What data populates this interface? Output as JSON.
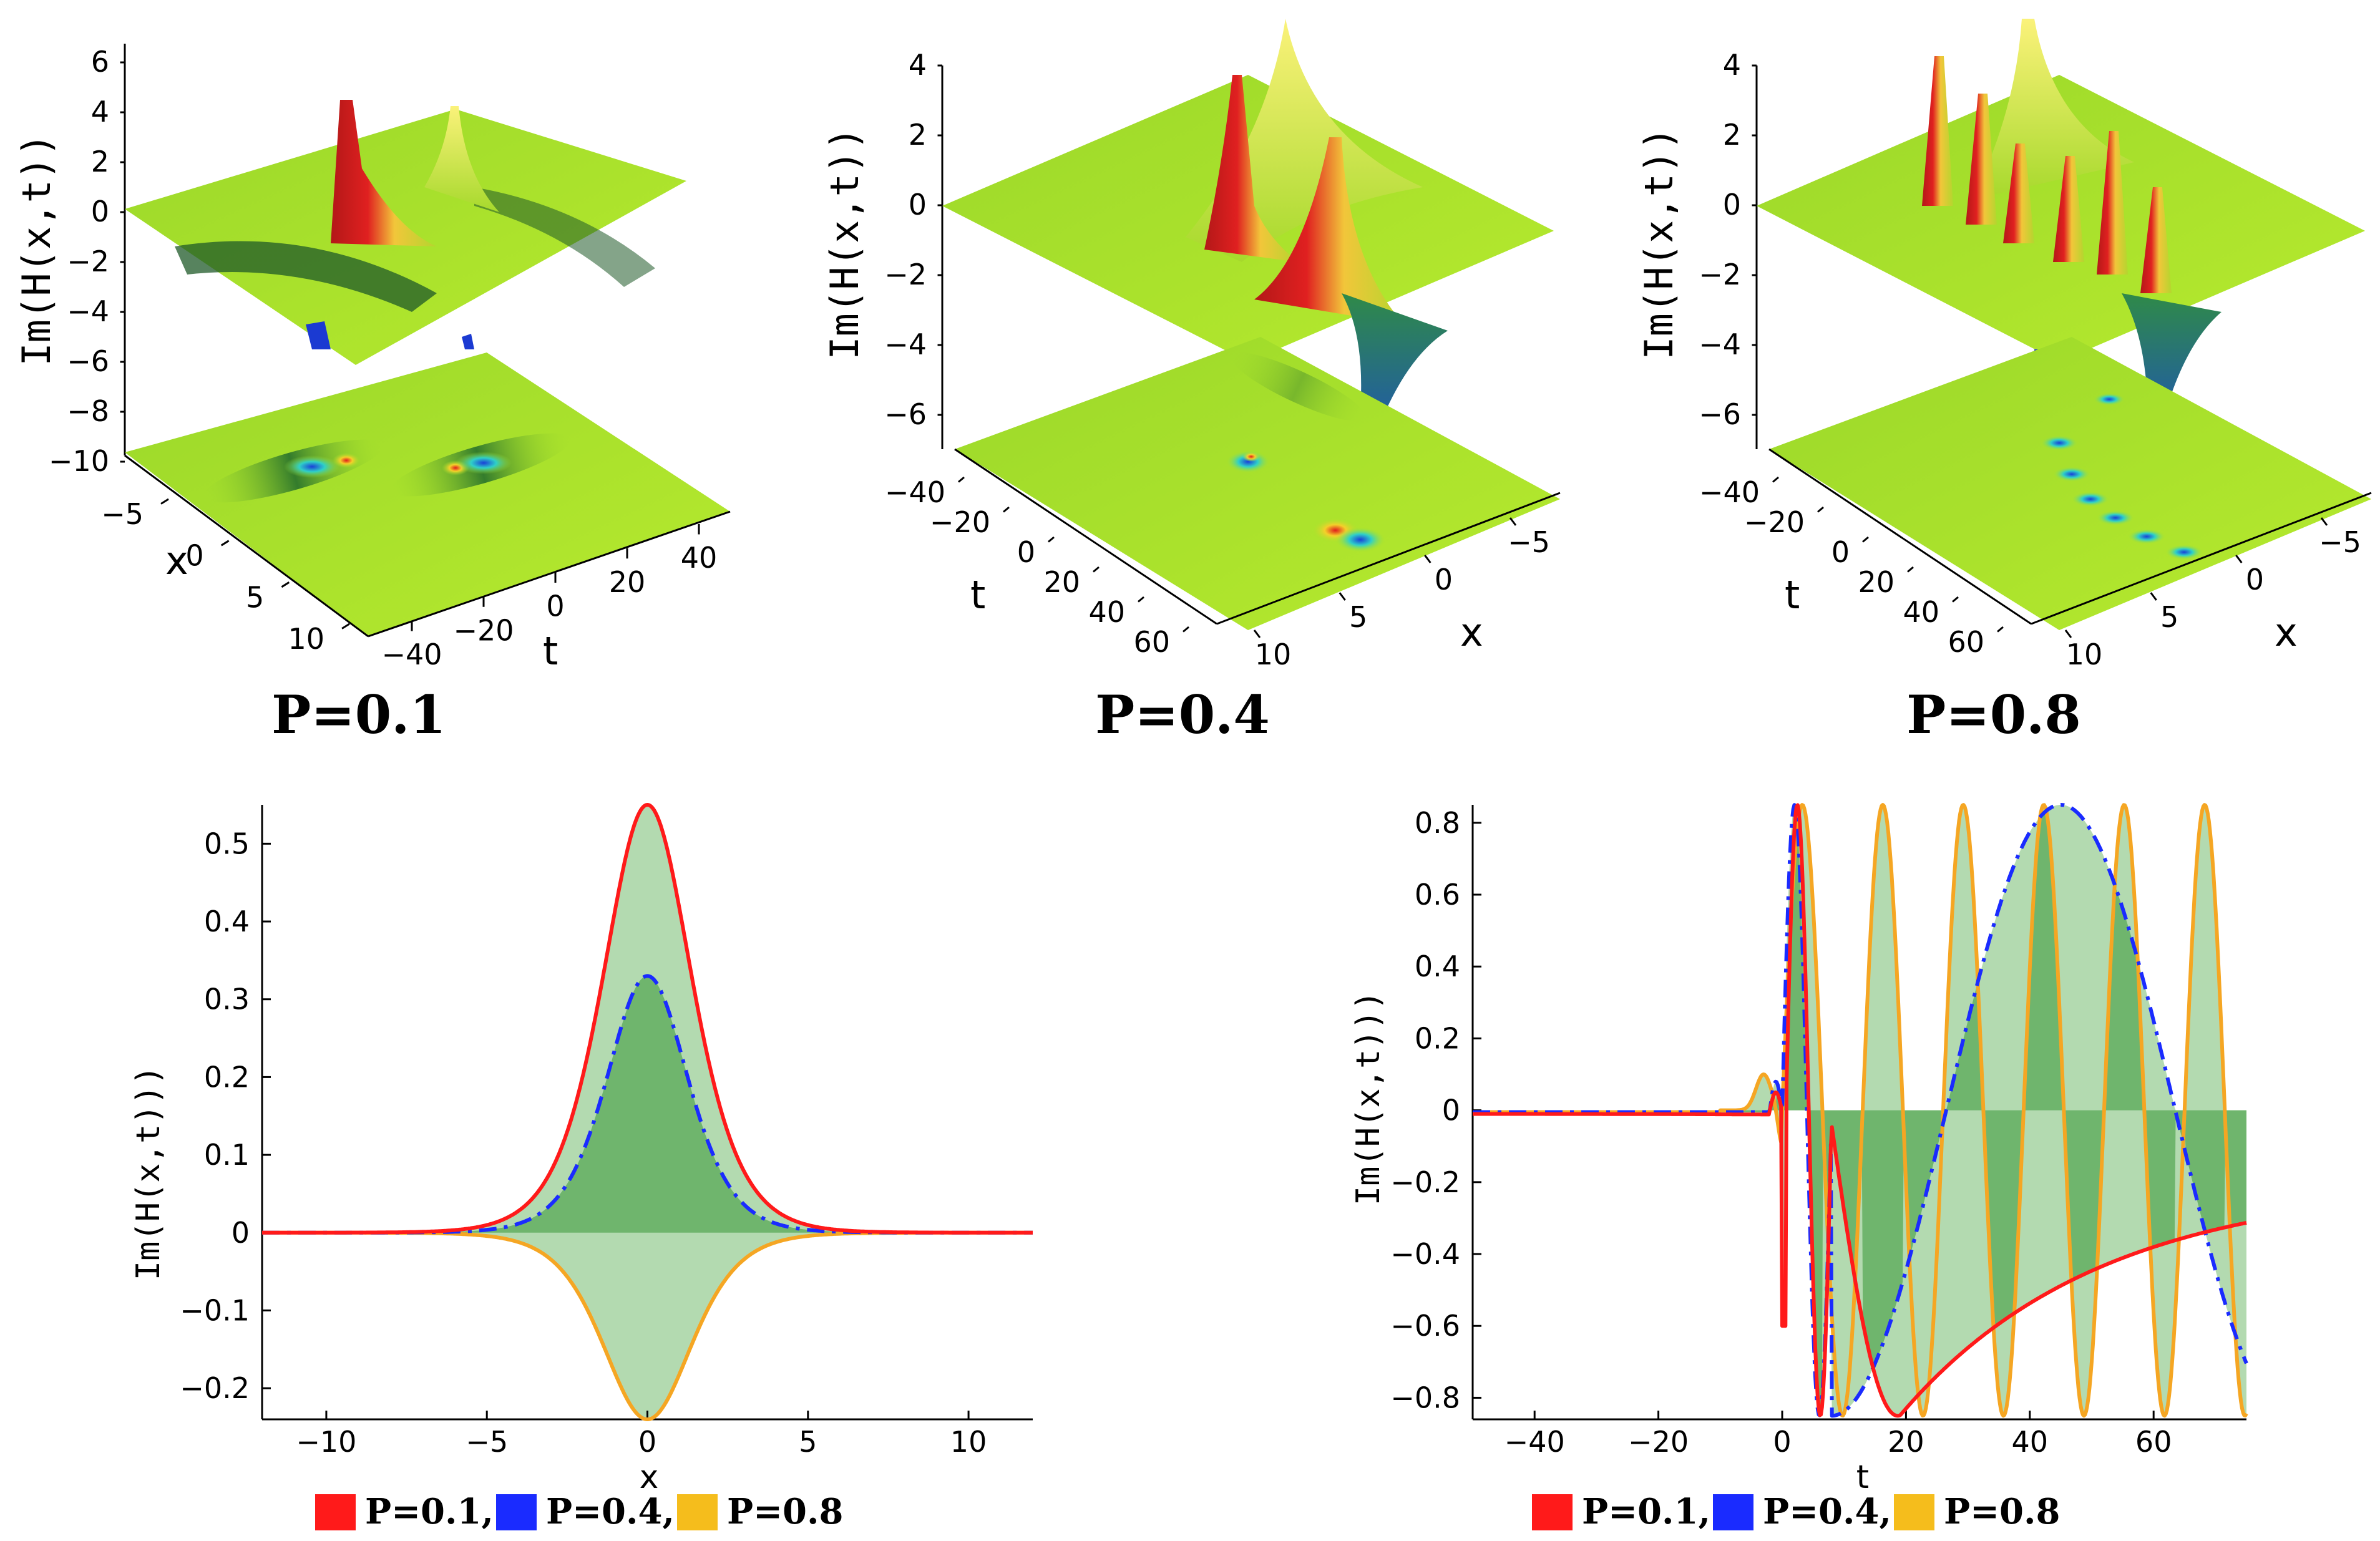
{
  "colors": {
    "p01": "#ff1a1a",
    "p04": "#1a2bff",
    "p08": "#f5a623",
    "fill_light": "#b3dab0",
    "fill_dark": "#6fb56d",
    "surface": "#a6e22e",
    "surface_dark": "#2f8f3f",
    "surface_yellow": "#f4f04a"
  },
  "chart_data": [
    {
      "type": "surface3d",
      "caption": "P=0.1",
      "zlabel": "Im(H(x,t))",
      "xlabel": "x",
      "ylabel": "t",
      "z_ticks": [
        "6",
        "4",
        "2",
        "0",
        "−2",
        "−4",
        "−6",
        "−8",
        "−10"
      ],
      "x_ticks": [
        "−5",
        "0",
        "5",
        "10"
      ],
      "t_ticks": [
        "−40",
        "−20",
        "0",
        "20",
        "40"
      ]
    },
    {
      "type": "surface3d",
      "caption": "P=0.4",
      "zlabel": "Im(H(x,t))",
      "xlabel": "x",
      "ylabel": "t",
      "z_ticks": [
        "4",
        "2",
        "0",
        "−2",
        "−4",
        "−6"
      ],
      "t_ticks": [
        "−40",
        "−20",
        "0",
        "20",
        "40",
        "60"
      ],
      "x_ticks": [
        "−5",
        "0",
        "5",
        "10"
      ]
    },
    {
      "type": "surface3d",
      "caption": "P=0.8",
      "zlabel": "Im(H(x,t))",
      "xlabel": "x",
      "ylabel": "t",
      "z_ticks": [
        "4",
        "2",
        "0",
        "−2",
        "−4",
        "−6"
      ],
      "t_ticks": [
        "−40",
        "−20",
        "0",
        "20",
        "40",
        "60"
      ],
      "x_ticks": [
        "−5",
        "0",
        "5",
        "10"
      ]
    },
    {
      "type": "line",
      "xlabel": "x",
      "ylabel": "Im(H(x,t)))",
      "xlim": [
        -12,
        12
      ],
      "ylim": [
        -0.24,
        0.55
      ],
      "x_ticks": [
        -10,
        -5,
        0,
        5,
        10
      ],
      "x_tick_labels": [
        "−10",
        "−5",
        "0",
        "5",
        "10"
      ],
      "y_ticks": [
        -0.2,
        -0.1,
        0,
        0.1,
        0.2,
        0.3,
        0.4,
        0.5
      ],
      "y_tick_labels": [
        "−0.2",
        "−0.1",
        "0",
        "0.1",
        "0.2",
        "0.3",
        "0.4",
        "0.5"
      ],
      "series": [
        {
          "name": "P=0.1",
          "peak": 0.55,
          "style": "solid"
        },
        {
          "name": "P=0.4",
          "peak": 0.33,
          "style": "dashdot"
        },
        {
          "name": "P=0.8",
          "peak": -0.24,
          "style": "solid"
        }
      ],
      "legend": [
        "P=0.1,",
        "P=0.4,",
        "P=0.8"
      ]
    },
    {
      "type": "line",
      "xlabel": "t",
      "ylabel": "Im(H(x,t)))",
      "xlim": [
        -50,
        75
      ],
      "ylim": [
        -0.86,
        0.85
      ],
      "x_ticks": [
        -40,
        -20,
        0,
        20,
        40,
        60
      ],
      "x_tick_labels": [
        "−40",
        "−20",
        "0",
        "20",
        "40",
        "60"
      ],
      "y_ticks": [
        -0.8,
        -0.6,
        -0.4,
        -0.2,
        0,
        0.2,
        0.4,
        0.6,
        0.8
      ],
      "y_tick_labels": [
        "−0.8",
        "−0.6",
        "−0.4",
        "−0.2",
        "0",
        "0.2",
        "0.4",
        "0.6",
        "0.8"
      ],
      "series": [
        {
          "name": "P=0.1",
          "amplitude": 0.85,
          "style": "solid"
        },
        {
          "name": "P=0.4",
          "amplitude": 0.85,
          "style": "dashdot"
        },
        {
          "name": "P=0.8",
          "amplitude": 0.85,
          "style": "solid"
        }
      ],
      "legend": [
        "P=0.1,",
        "P=0.4,",
        "P=0.8"
      ]
    }
  ]
}
